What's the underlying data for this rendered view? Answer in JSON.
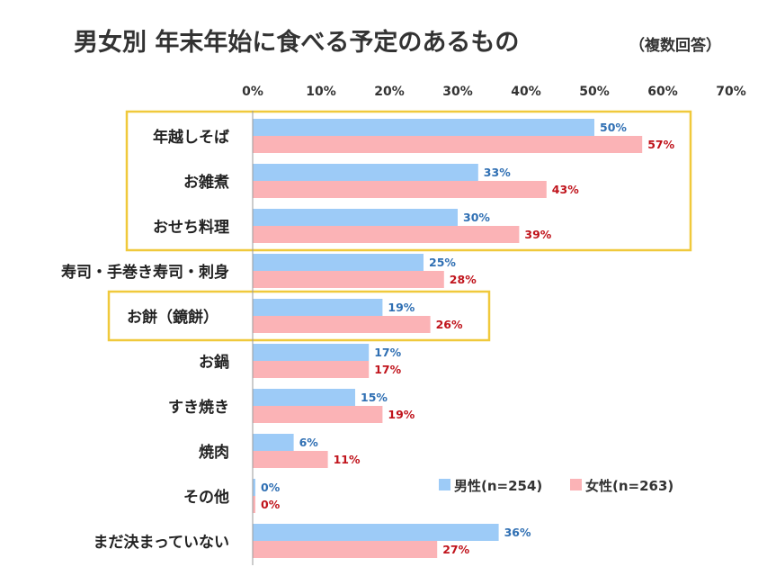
{
  "chart_data": {
    "type": "bar",
    "orientation": "horizontal",
    "title": "男女別 年末年始に食べる予定のあるもの",
    "subtitle": "（複数回答）",
    "xlim": [
      0,
      70
    ],
    "x_ticks": [
      "0%",
      "10%",
      "20%",
      "30%",
      "40%",
      "50%",
      "60%",
      "70%"
    ],
    "categories": [
      "年越しそば",
      "お雑煮",
      "おせち料理",
      "寿司・手巻き寿司・刺身",
      "お餅（鏡餅）",
      "お鍋",
      "すき焼き",
      "焼肉",
      "その他",
      "まだ決まっていない"
    ],
    "series": [
      {
        "name": "男性(n=254)",
        "values": [
          50,
          33,
          30,
          25,
          19,
          17,
          15,
          6,
          0,
          36
        ],
        "labels": [
          "50%",
          "33%",
          "30%",
          "25%",
          "19%",
          "17%",
          "15%",
          "6%",
          "0%",
          "36%"
        ]
      },
      {
        "name": "女性(n=263)",
        "values": [
          57,
          43,
          39,
          28,
          26,
          17,
          19,
          11,
          0,
          27
        ],
        "labels": [
          "57%",
          "43%",
          "39%",
          "28%",
          "26%",
          "17%",
          "19%",
          "11%",
          "0%",
          "27%"
        ]
      }
    ],
    "highlight_groups": [
      [
        0,
        2
      ],
      [
        4,
        4
      ]
    ],
    "legend": "bottom-right",
    "grid": false
  },
  "colors": {
    "male_bar": "#9dcbf7",
    "female_bar": "#fbb3b6",
    "male_label": "#2f6fb3",
    "female_label": "#c0141c",
    "highlight": "#f0c93c",
    "axis": "#999999"
  }
}
